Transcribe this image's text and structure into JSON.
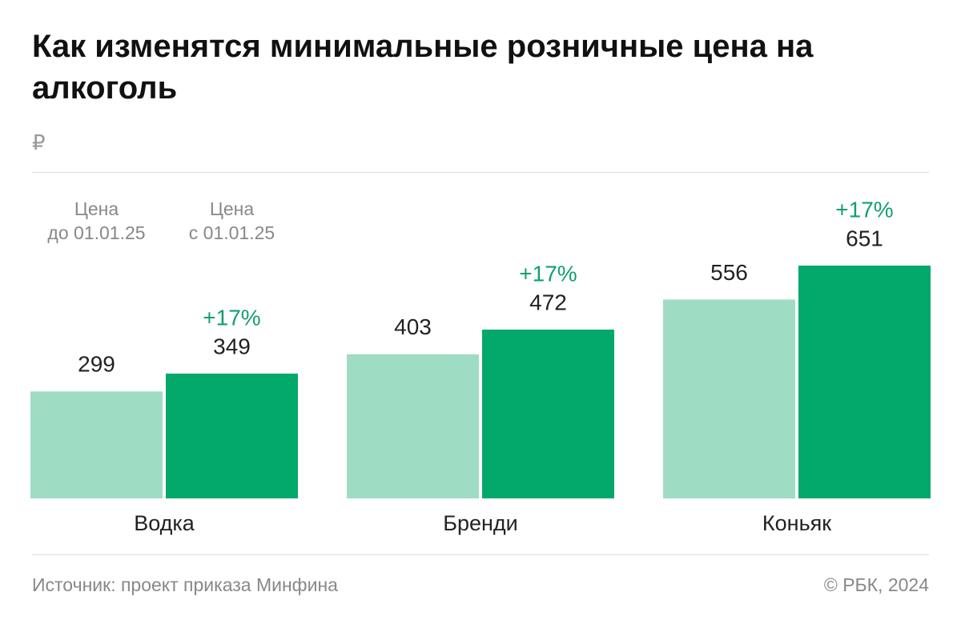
{
  "chart_data": {
    "type": "bar",
    "title": "Как изменятся минимальные розничные цена на алкоголь",
    "unit": "₽",
    "categories": [
      "Водка",
      "Бренди",
      "Коньяк"
    ],
    "series": [
      {
        "name": "Цена\nдо 01.01.25",
        "color": "#9edcc4",
        "values": [
          299,
          403,
          556
        ]
      },
      {
        "name": "Цена\nс 01.01.25",
        "color": "#03a86b",
        "values": [
          349,
          472,
          651
        ],
        "annotations": [
          "+17%",
          "+17%",
          "+17%"
        ],
        "annotation_color": "#139f6c"
      }
    ],
    "source": "Источник: проект приказа Минфина",
    "credit": "© РБК, 2024"
  }
}
